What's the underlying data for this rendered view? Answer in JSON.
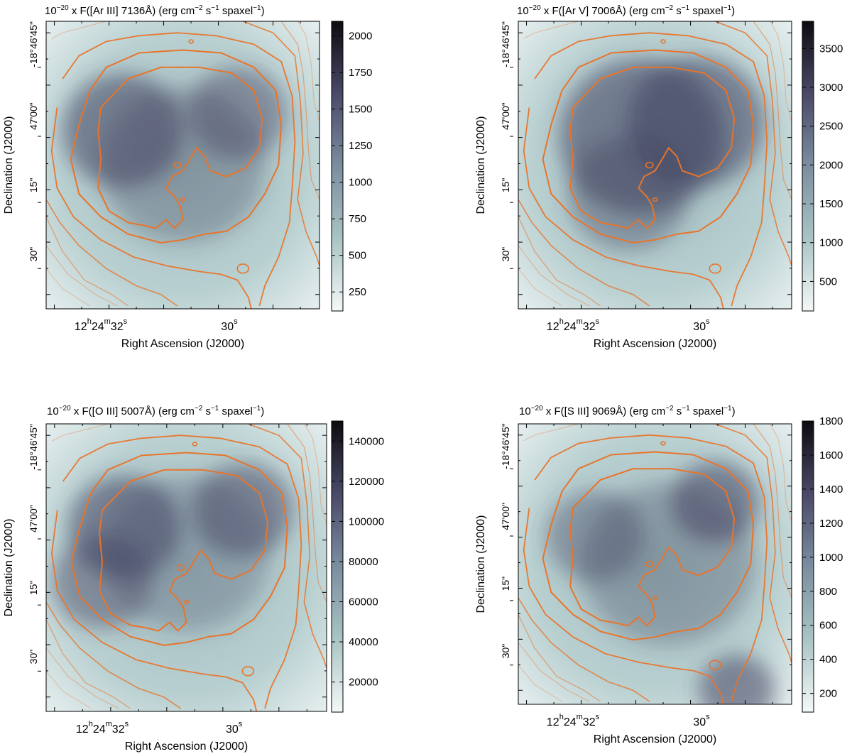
{
  "chart_data": [
    {
      "type": "heatmap",
      "title": {
        "prefix": "10",
        "exp": "−20",
        "rest": " x F([Ar III] 7136Å) (erg cm",
        "u1": "−2",
        "mid": " s",
        "u2": "−1",
        "end": " spaxel",
        "u3": "−1",
        "close": ")"
      },
      "xlabel": "Right Ascension (J2000)",
      "ylabel": "Declination (J2000)",
      "xticks": [
        {
          "pre": "12",
          "h": "h",
          "mid1": "24",
          "m": "m",
          "mid2": "32",
          "s": "s"
        },
        {
          "pre": "",
          "h": "",
          "mid1": "",
          "m": "",
          "mid2": "30",
          "s": "s"
        }
      ],
      "yticks": [
        "-18°46'45\"",
        "47'00\"",
        "15\"",
        "30\""
      ],
      "colorbar": {
        "ticks": [
          "2000",
          "1750",
          "1500",
          "1250",
          "1000",
          "750",
          "500",
          "250"
        ],
        "values": [
          2000,
          1750,
          1500,
          1250,
          1000,
          750,
          500,
          250
        ],
        "range": [
          120,
          2100
        ]
      },
      "colormap": "bone_r",
      "contour_color": "#e8742a"
    },
    {
      "type": "heatmap",
      "title": {
        "prefix": "10",
        "exp": "−20",
        "rest": " x F([Ar V] 7006Å) (erg cm",
        "u1": "−2",
        "mid": " s",
        "u2": "−1",
        "end": " spaxel",
        "u3": "−1",
        "close": ")"
      },
      "xlabel": "Right Ascension (J2000)",
      "ylabel": "Declination (J2000)",
      "xticks": [
        {
          "pre": "12",
          "h": "h",
          "mid1": "24",
          "m": "m",
          "mid2": "32",
          "s": "s"
        },
        {
          "pre": "",
          "h": "",
          "mid1": "",
          "m": "",
          "mid2": "30",
          "s": "s"
        }
      ],
      "yticks": [
        "-18°46'45\"",
        "47'00\"",
        "15\"",
        "30\""
      ],
      "colorbar": {
        "ticks": [
          "3500",
          "3000",
          "2500",
          "2000",
          "1500",
          "1000",
          "500"
        ],
        "values": [
          3500,
          3000,
          2500,
          2000,
          1500,
          1000,
          500
        ],
        "range": [
          120,
          3850
        ]
      },
      "colormap": "bone_r",
      "contour_color": "#e8742a"
    },
    {
      "type": "heatmap",
      "title": {
        "prefix": "10",
        "exp": "−20",
        "rest": " x F([O III] 5007Å) (erg cm",
        "u1": "−2",
        "mid": " s",
        "u2": "−1",
        "end": " spaxel",
        "u3": "−1",
        "close": ")"
      },
      "xlabel": "Right Ascension (J2000)",
      "ylabel": "Declination (J2000)",
      "xticks": [
        {
          "pre": "12",
          "h": "h",
          "mid1": "24",
          "m": "m",
          "mid2": "32",
          "s": "s"
        },
        {
          "pre": "",
          "h": "",
          "mid1": "",
          "m": "",
          "mid2": "30",
          "s": "s"
        }
      ],
      "yticks": [
        "-18°46'45\"",
        "47'00\"",
        "15\"",
        "30\""
      ],
      "colorbar": {
        "ticks": [
          "140000",
          "120000",
          "100000",
          "80000",
          "60000",
          "40000",
          "20000"
        ],
        "values": [
          140000,
          120000,
          100000,
          80000,
          60000,
          40000,
          20000
        ],
        "range": [
          5000,
          150000
        ]
      },
      "colormap": "bone_r",
      "contour_color": "#e8742a"
    },
    {
      "type": "heatmap",
      "title": {
        "prefix": "10",
        "exp": "−20",
        "rest": " x F([S III] 9069Å) (erg cm",
        "u1": "−2",
        "mid": " s",
        "u2": "−1",
        "end": " spaxel",
        "u3": "−1",
        "close": ")"
      },
      "xlabel": "Right Ascension (J2000)",
      "ylabel": "Declination (J2000)",
      "xticks": [
        {
          "pre": "12",
          "h": "h",
          "mid1": "24",
          "m": "m",
          "mid2": "32",
          "s": "s"
        },
        {
          "pre": "",
          "h": "",
          "mid1": "",
          "m": "",
          "mid2": "30",
          "s": "s"
        }
      ],
      "yticks": [
        "-18°46'45\"",
        "47'00\"",
        "15\"",
        "30\""
      ],
      "colorbar": {
        "ticks": [
          "1800",
          "1600",
          "1400",
          "1200",
          "1000",
          "800",
          "600",
          "400",
          "200"
        ],
        "values": [
          1800,
          1600,
          1400,
          1200,
          1000,
          800,
          600,
          400,
          200
        ],
        "range": [
          90,
          1800
        ]
      },
      "colormap": "bone_r",
      "contour_color": "#e8742a"
    }
  ]
}
